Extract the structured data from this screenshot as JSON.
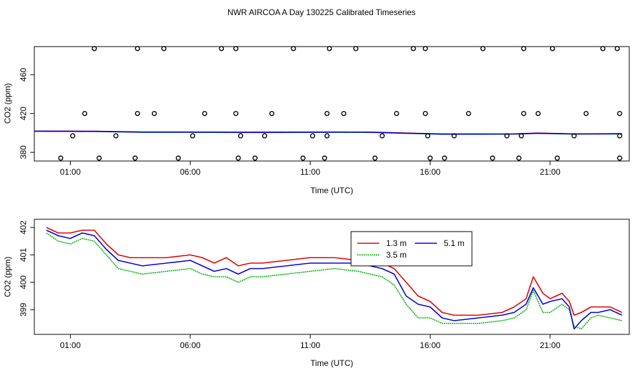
{
  "title": "NWR AIRCOA A  Day 130225  Calibrated Timeseries",
  "chart_data": [
    {
      "type": "scatter",
      "title": "",
      "xlabel": "Time (UTC)",
      "ylabel": "CO2 (ppm)",
      "xlim": [
        -0.5,
        24.3
      ],
      "ylim": [
        371,
        489
      ],
      "xticks": [
        1,
        6,
        11,
        16,
        21
      ],
      "xtick_labels": [
        "01:00",
        "06:00",
        "11:00",
        "16:00",
        "21:00"
      ],
      "yticks": [
        380,
        420,
        460
      ],
      "ytick_labels": [
        "380",
        "420",
        "460"
      ],
      "points": [
        [
          1.1,
          397
        ],
        [
          2.9,
          397
        ],
        [
          6.1,
          397
        ],
        [
          8.1,
          397
        ],
        [
          9.1,
          397
        ],
        [
          11.1,
          397
        ],
        [
          11.7,
          397
        ],
        [
          14.0,
          397
        ],
        [
          15.9,
          397
        ],
        [
          17.0,
          397
        ],
        [
          19.2,
          397
        ],
        [
          19.8,
          397
        ],
        [
          22.0,
          397
        ],
        [
          23.9,
          397
        ],
        [
          0.6,
          374
        ],
        [
          2.2,
          374
        ],
        [
          3.7,
          374
        ],
        [
          5.5,
          374
        ],
        [
          8.0,
          374
        ],
        [
          8.7,
          374
        ],
        [
          10.7,
          374
        ],
        [
          11.6,
          374
        ],
        [
          13.7,
          374
        ],
        [
          16.0,
          374
        ],
        [
          16.6,
          374
        ],
        [
          18.6,
          374
        ],
        [
          19.7,
          374
        ],
        [
          21.3,
          374
        ],
        [
          23.9,
          374
        ],
        [
          1.6,
          420
        ],
        [
          3.8,
          420
        ],
        [
          4.5,
          420
        ],
        [
          6.6,
          420
        ],
        [
          7.9,
          420
        ],
        [
          9.4,
          420
        ],
        [
          11.7,
          420
        ],
        [
          12.4,
          420
        ],
        [
          14.6,
          420
        ],
        [
          15.8,
          420
        ],
        [
          17.6,
          420
        ],
        [
          19.9,
          420
        ],
        [
          20.5,
          420
        ],
        [
          22.5,
          420
        ],
        [
          23.9,
          420
        ],
        [
          2.0,
          487
        ],
        [
          3.8,
          487
        ],
        [
          4.9,
          487
        ],
        [
          7.3,
          487
        ],
        [
          7.9,
          487
        ],
        [
          10.3,
          487
        ],
        [
          11.8,
          487
        ],
        [
          12.9,
          487
        ],
        [
          15.3,
          487
        ],
        [
          15.8,
          487
        ],
        [
          18.2,
          487
        ],
        [
          19.9,
          487
        ],
        [
          21.1,
          487
        ],
        [
          23.2,
          487
        ],
        [
          23.8,
          487
        ]
      ],
      "series": [
        {
          "name": "1.3 m",
          "color": "#e00000",
          "x": [
            -0.5,
            2,
            4,
            6,
            8,
            10,
            12,
            13.5,
            15,
            16.5,
            18,
            19.5,
            20.5,
            22,
            24
          ],
          "y": [
            401.9,
            401.7,
            400.9,
            400.9,
            400.7,
            400.8,
            400.9,
            400.8,
            399.8,
            398.9,
            398.9,
            399.0,
            399.8,
            399.0,
            399.2
          ]
        },
        {
          "name": "3.5 m",
          "color": "#00b000",
          "x": [
            -0.5,
            2,
            4,
            6,
            8,
            10,
            12,
            13.5,
            15,
            16.5,
            18,
            19.5,
            20.5,
            22,
            24
          ],
          "y": [
            401.6,
            401.4,
            400.6,
            400.6,
            400.4,
            400.4,
            400.6,
            400.5,
            399.5,
            398.6,
            398.6,
            398.7,
            399.4,
            398.7,
            398.9
          ]
        },
        {
          "name": "5.1 m",
          "color": "#0000dd",
          "x": [
            -0.5,
            2,
            4,
            6,
            8,
            10,
            12,
            13.5,
            15,
            16.5,
            18,
            19.5,
            20.5,
            22,
            24
          ],
          "y": [
            401.8,
            401.6,
            400.8,
            400.8,
            400.6,
            400.7,
            400.8,
            400.7,
            399.7,
            398.8,
            398.8,
            398.9,
            399.7,
            398.9,
            399.1
          ]
        }
      ]
    },
    {
      "type": "line",
      "title": "",
      "xlabel": "Time (UTC)",
      "ylabel": "CO2 (ppm)",
      "xlim": [
        -0.5,
        24.3
      ],
      "ylim": [
        398.1,
        402.3
      ],
      "xticks": [
        1,
        6,
        11,
        16,
        21
      ],
      "xtick_labels": [
        "01:00",
        "06:00",
        "11:00",
        "16:00",
        "21:00"
      ],
      "yticks": [
        399,
        400,
        401,
        402
      ],
      "ytick_labels": [
        "399",
        "400",
        "401",
        "402"
      ],
      "legend": {
        "position": "top-center",
        "entries": [
          "1.3 m",
          "5.1 m",
          "3.5 m"
        ]
      },
      "series": [
        {
          "name": "1.3 m",
          "color": "#e00000",
          "x": [
            0,
            0.5,
            1.0,
            1.5,
            2.0,
            2.5,
            3.0,
            3.5,
            4.0,
            5.0,
            6.0,
            6.5,
            7.0,
            7.5,
            8.0,
            8.5,
            9.0,
            10.0,
            11.0,
            12.0,
            13.0,
            13.5,
            14.0,
            14.5,
            15.0,
            15.5,
            16.0,
            16.5,
            17.0,
            18.0,
            19.0,
            19.5,
            20.0,
            20.3,
            20.7,
            21.0,
            21.5,
            21.8,
            22.0,
            22.3,
            22.7,
            23.0,
            23.5,
            24.0
          ],
          "y": [
            402.0,
            401.8,
            401.8,
            401.9,
            401.9,
            401.4,
            401.0,
            400.9,
            400.9,
            400.9,
            401.0,
            400.9,
            400.7,
            400.9,
            400.6,
            400.7,
            400.7,
            400.8,
            400.9,
            400.9,
            400.8,
            400.8,
            400.7,
            400.5,
            400.0,
            399.5,
            399.3,
            398.9,
            398.8,
            398.8,
            398.9,
            399.1,
            399.4,
            400.2,
            399.6,
            399.4,
            399.6,
            399.3,
            398.8,
            398.9,
            399.1,
            399.1,
            399.1,
            398.9
          ]
        },
        {
          "name": "3.5 m",
          "color": "#00b000",
          "x": [
            0,
            0.5,
            1.0,
            1.5,
            2.0,
            2.5,
            3.0,
            3.5,
            4.0,
            5.0,
            6.0,
            6.5,
            7.0,
            7.5,
            8.0,
            8.5,
            9.0,
            10.0,
            11.0,
            12.0,
            13.0,
            13.5,
            14.0,
            14.5,
            15.0,
            15.5,
            16.0,
            16.5,
            17.0,
            18.0,
            19.0,
            19.5,
            20.0,
            20.3,
            20.7,
            21.0,
            21.5,
            21.8,
            22.0,
            22.3,
            22.7,
            23.0,
            23.5,
            24.0
          ],
          "y": [
            401.8,
            401.5,
            401.4,
            401.6,
            401.5,
            401.0,
            400.5,
            400.4,
            400.3,
            400.4,
            400.5,
            400.3,
            400.2,
            400.2,
            400.0,
            400.2,
            400.2,
            400.3,
            400.4,
            400.5,
            400.4,
            400.3,
            400.2,
            399.9,
            399.2,
            398.7,
            398.7,
            398.5,
            398.5,
            398.5,
            398.6,
            398.7,
            399.0,
            399.7,
            398.9,
            398.9,
            399.2,
            399.0,
            398.4,
            398.3,
            398.7,
            398.8,
            398.7,
            398.6
          ]
        },
        {
          "name": "5.1 m",
          "color": "#0000dd",
          "x": [
            0,
            0.5,
            1.0,
            1.5,
            2.0,
            2.5,
            3.0,
            3.5,
            4.0,
            5.0,
            6.0,
            6.5,
            7.0,
            7.5,
            8.0,
            8.5,
            9.0,
            10.0,
            11.0,
            12.0,
            13.0,
            13.5,
            14.0,
            14.5,
            15.0,
            15.5,
            16.0,
            16.5,
            17.0,
            18.0,
            19.0,
            19.5,
            20.0,
            20.3,
            20.7,
            21.0,
            21.5,
            21.8,
            22.0,
            22.3,
            22.7,
            23.0,
            23.5,
            24.0
          ],
          "y": [
            401.9,
            401.7,
            401.6,
            401.8,
            401.7,
            401.2,
            400.8,
            400.7,
            400.6,
            400.7,
            400.8,
            400.6,
            400.4,
            400.5,
            400.3,
            400.5,
            400.5,
            400.6,
            400.7,
            400.7,
            400.7,
            400.6,
            400.5,
            400.3,
            399.5,
            399.2,
            399.1,
            398.7,
            398.6,
            398.7,
            398.8,
            398.9,
            399.2,
            399.8,
            399.2,
            399.3,
            399.4,
            399.1,
            398.3,
            398.6,
            398.9,
            398.9,
            399.0,
            398.8
          ]
        }
      ]
    }
  ]
}
